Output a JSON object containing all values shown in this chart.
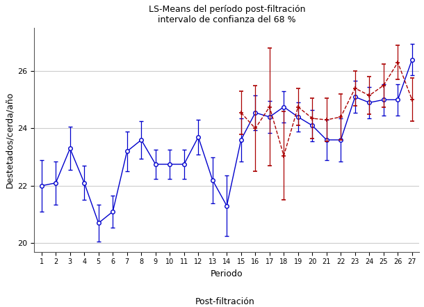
{
  "title_line1": "LS-Means del período post-filtración",
  "title_line2": "intervalo de confianza del 68 %",
  "xlabel": "Periodo",
  "ylabel": "Destetados/cerda/año",
  "legend_title": "Post-filtración",
  "xlim": [
    0.5,
    27.5
  ],
  "ylim": [
    19.7,
    27.5
  ],
  "yticks": [
    20,
    22,
    24,
    26
  ],
  "xticks": [
    1,
    2,
    3,
    4,
    5,
    6,
    7,
    8,
    9,
    10,
    11,
    12,
    13,
    14,
    15,
    16,
    17,
    18,
    19,
    20,
    21,
    22,
    23,
    24,
    25,
    26,
    27
  ],
  "blue_color": "#0000cc",
  "red_color": "#aa0000",
  "grid_color": "#cccccc",
  "group0": {
    "x": [
      1,
      2,
      3,
      4,
      5,
      6,
      7,
      8,
      9,
      10,
      11,
      12,
      13,
      14,
      15,
      16,
      17,
      18,
      19,
      20,
      21,
      22,
      23,
      24,
      25,
      26,
      27
    ],
    "y": [
      22.0,
      22.1,
      23.3,
      22.1,
      20.7,
      21.1,
      23.2,
      23.6,
      22.75,
      22.75,
      22.75,
      23.7,
      22.2,
      21.3,
      23.6,
      24.55,
      24.4,
      24.75,
      24.4,
      24.1,
      23.6,
      23.6,
      25.1,
      24.9,
      25.0,
      25.0,
      26.4
    ],
    "err": [
      0.9,
      0.75,
      0.75,
      0.6,
      0.65,
      0.55,
      0.7,
      0.65,
      0.5,
      0.5,
      0.5,
      0.6,
      0.8,
      1.05,
      0.75,
      0.6,
      0.55,
      0.55,
      0.5,
      0.55,
      0.7,
      0.75,
      0.55,
      0.55,
      0.55,
      0.55,
      0.55
    ]
  },
  "group1": {
    "x": [
      15,
      16,
      17,
      18,
      19,
      20,
      21,
      22,
      23,
      24,
      25,
      26,
      27
    ],
    "y": [
      24.55,
      24.0,
      24.75,
      23.05,
      24.75,
      24.35,
      24.3,
      24.4,
      25.4,
      25.15,
      25.5,
      26.3,
      25.0
    ],
    "err": [
      0.75,
      1.5,
      2.05,
      1.55,
      0.65,
      0.7,
      0.75,
      0.8,
      0.6,
      0.65,
      0.75,
      0.6,
      0.75
    ]
  },
  "background_color": "#ffffff"
}
